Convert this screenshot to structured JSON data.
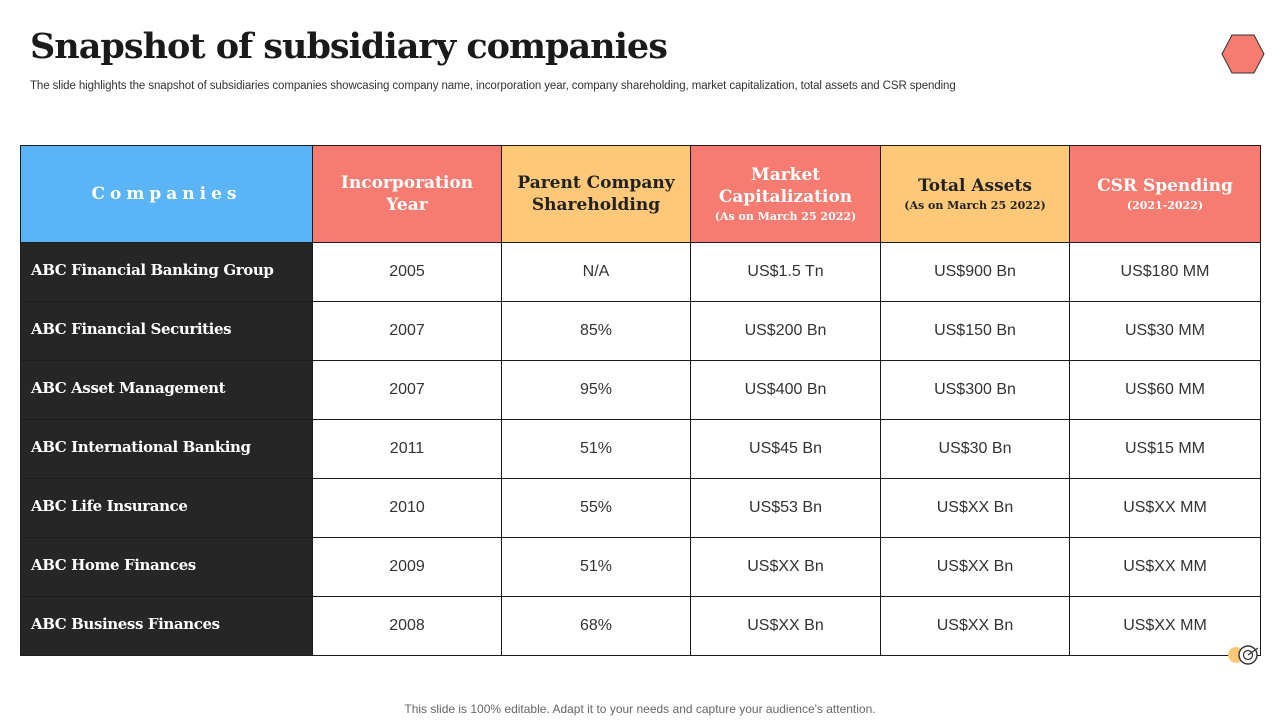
{
  "page": {
    "title": "Snapshot of subsidiary companies",
    "subtitle": "The slide highlights the snapshot of subsidiaries companies showcasing company name, incorporation year, company shareholding, market capitalization, total assets and CSR spending",
    "footer": "This slide is 100% editable. Adapt it to your needs and capture your audience's attention."
  },
  "colors": {
    "blue_header": "#5ab4f6",
    "red_header": "#f67c72",
    "yellow_header": "#fdc978",
    "company_cell": "#262626",
    "hexagon": "#f67c72"
  },
  "icons": {
    "top_right": "hexagon-icon",
    "bottom_right": "target-icon"
  },
  "table": {
    "headers": {
      "companies": "Companies",
      "incorporation": "Incorporation Year",
      "shareholding": "Parent Company Shareholding",
      "market_cap": "Market Capitalization",
      "market_cap_note": "(As on March 25 2022)",
      "total_assets": "Total Assets",
      "total_assets_note": "(As on March 25 2022)",
      "csr": "CSR Spending",
      "csr_note": "(2021-2022)"
    },
    "rows": [
      {
        "company": "ABC Financial Banking Group",
        "year": "2005",
        "shareholding": "N/A",
        "market_cap": "US$1.5 Tn",
        "assets": "US$900 Bn",
        "csr": "US$180 MM"
      },
      {
        "company": "ABC Financial Securities",
        "year": "2007",
        "shareholding": "85%",
        "market_cap": "US$200 Bn",
        "assets": "US$150 Bn",
        "csr": "US$30 MM"
      },
      {
        "company": "ABC Asset Management",
        "year": "2007",
        "shareholding": "95%",
        "market_cap": "US$400 Bn",
        "assets": "US$300 Bn",
        "csr": "US$60 MM"
      },
      {
        "company": "ABC International Banking",
        "year": "2011",
        "shareholding": "51%",
        "market_cap": "US$45 Bn",
        "assets": "US$30 Bn",
        "csr": "US$15 MM"
      },
      {
        "company": "ABC Life Insurance",
        "year": "2010",
        "shareholding": "55%",
        "market_cap": "US$53 Bn",
        "assets": "US$XX Bn",
        "csr": "US$XX MM"
      },
      {
        "company": "ABC Home Finances",
        "year": "2009",
        "shareholding": "51%",
        "market_cap": "US$XX Bn",
        "assets": "US$XX Bn",
        "csr": "US$XX MM"
      },
      {
        "company": "ABC Business Finances",
        "year": "2008",
        "shareholding": "68%",
        "market_cap": "US$XX Bn",
        "assets": "US$XX Bn",
        "csr": "US$XX MM"
      }
    ]
  }
}
